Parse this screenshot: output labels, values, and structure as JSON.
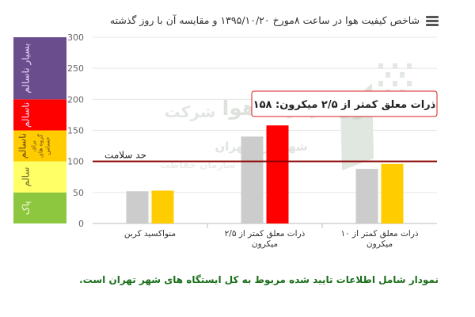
{
  "header": {
    "title": "شاخص کیفیت هوا در ساعت ۸مورخ ۱۳۹۵/۱۰/۲۰ و مقایسه آن با روز گذشته",
    "menu_icon": "hamburger-menu-icon"
  },
  "footnote": "نمودار شامل اطلاعات تایید شده مربوط به کل ایستگاه های شهر تهران است.",
  "watermark": {
    "lines": [
      "کنترل کیفیت هوا",
      "شرکت",
      "شهرداری تهران",
      "سازمان حفاظت"
    ],
    "logo": "air-quality-company-logo"
  },
  "chart_data": {
    "type": "bar",
    "title": "شاخص کیفیت هوا در ساعت ۸مورخ ۱۳۹۵/۱۰/۲۰ و مقایسه آن با روز گذشته",
    "categories": [
      "منواکسید کربن",
      "ذرات معلق کمتر از ۲/۵ میکرون",
      "ذرات معلق کمتر از ۱۰ میکرون"
    ],
    "category_lines": [
      [
        "منواکسید کربن"
      ],
      [
        "ذرات معلق کمتر از ۲/۵",
        "میکرون"
      ],
      [
        "ذرات معلق کمتر از ۱۰",
        "میکرون"
      ]
    ],
    "series": [
      {
        "color": "#cccccc",
        "values": [
          52,
          140,
          88
        ]
      },
      {
        "colors": [
          "#ffcc00",
          "#ff0000",
          "#ffcc00"
        ],
        "values": [
          53,
          158,
          96
        ]
      }
    ],
    "ylim": [
      0,
      300
    ],
    "yticks": [
      0,
      50,
      100,
      150,
      200,
      250,
      300
    ],
    "grid": true,
    "reference_line": {
      "label": "حد سلامت",
      "value": 100,
      "color": "#8b0000"
    },
    "tooltip": {
      "text": "ذرات معلق کمتر از ۲/۵ میکرون: ۱۵۸",
      "value": 158
    },
    "bands": [
      {
        "label": "پاک",
        "from": 0,
        "to": 50,
        "color": "#8dc63f"
      },
      {
        "label": "سالم",
        "from": 50,
        "to": 100,
        "color": "#ffff66"
      },
      {
        "label": "ناسالم برای گروه های حساس",
        "label_main": "ناسالم",
        "label_small": [
          "برای",
          "گروه های",
          "حساس"
        ],
        "from": 100,
        "to": 150,
        "color": "#ffcc00"
      },
      {
        "label": "ناسالم",
        "from": 150,
        "to": 200,
        "color": "#ff0000"
      },
      {
        "label": "بسیار ناسالم",
        "from": 200,
        "to": 300,
        "color": "#6a4d8c"
      }
    ]
  }
}
